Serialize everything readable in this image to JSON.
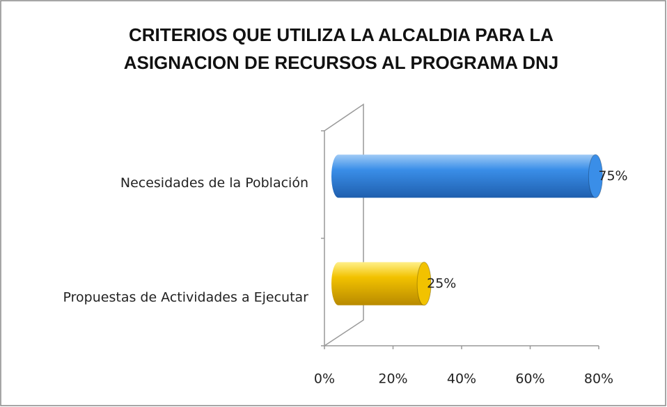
{
  "chart_data": {
    "type": "bar",
    "orientation": "horizontal",
    "title": [
      "CRITERIOS QUE UTILIZA LA ALCALDIA PARA  LA",
      "ASIGNACION DE RECURSOS  AL PROGRAMA DNJ"
    ],
    "categories": [
      "Necesidades de la Población",
      "Propuestas de Actividades a Ejecutar"
    ],
    "values": [
      75,
      25
    ],
    "value_labels": [
      "75%",
      "25%"
    ],
    "colors": [
      "#3a8ee8",
      "#f2c200"
    ],
    "xlim": [
      0,
      80
    ],
    "xticks": [
      {
        "value": 0,
        "label": "0%"
      },
      {
        "value": 20,
        "label": "20%"
      },
      {
        "value": 40,
        "label": "40%"
      },
      {
        "value": 60,
        "label": "60%"
      },
      {
        "value": 80,
        "label": "80%"
      }
    ]
  }
}
